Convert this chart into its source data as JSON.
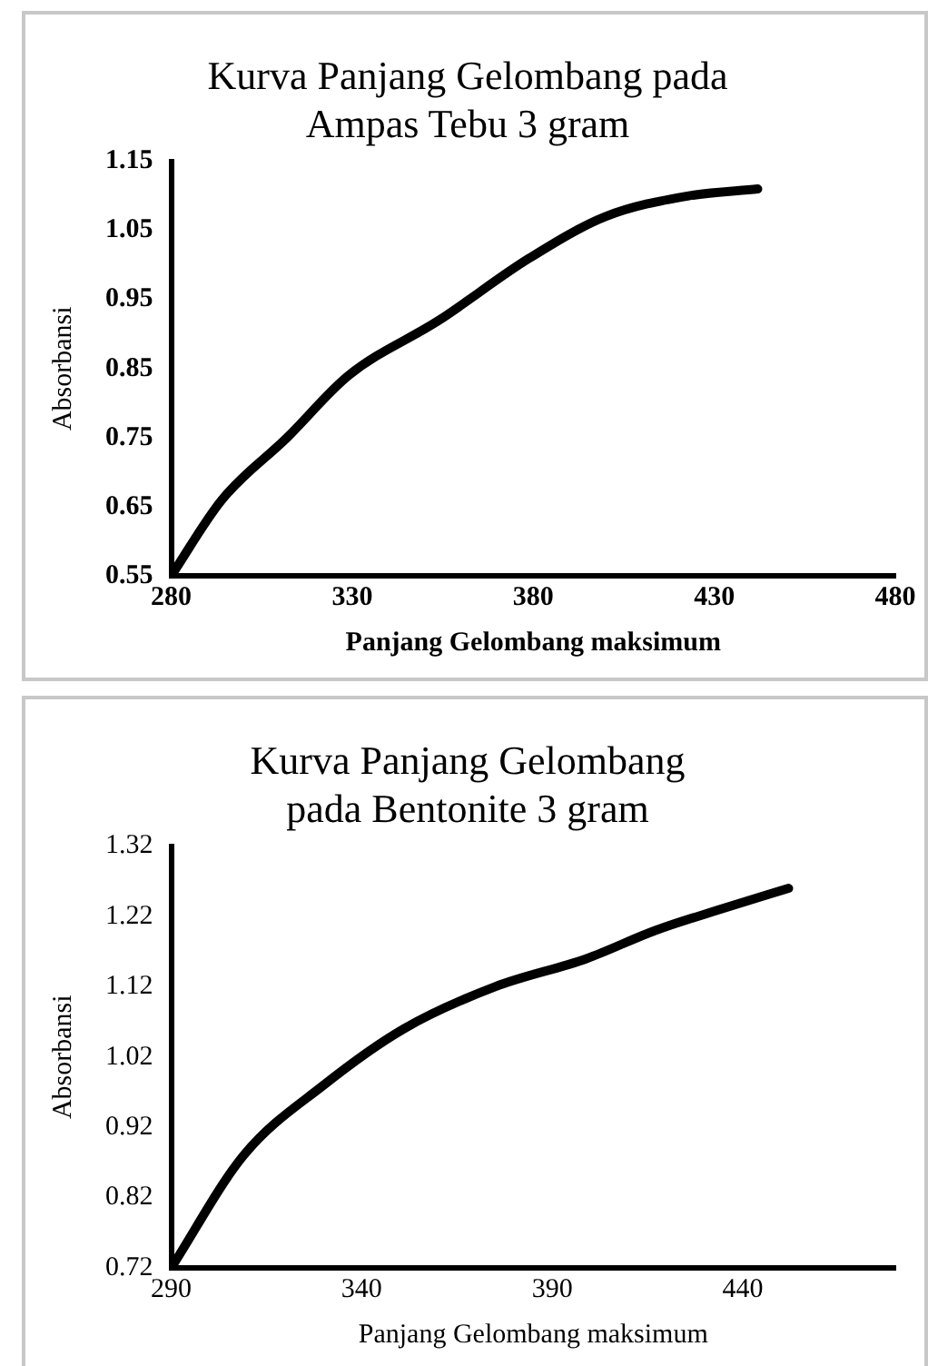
{
  "chart_data": [
    {
      "type": "line",
      "title": [
        "Kurva Panjang Gelombang pada",
        "Ampas Tebu 3 gram"
      ],
      "xlabel": "Panjang Gelombang maksimum",
      "ylabel": "Absorbansi",
      "x": [
        280,
        294,
        312,
        329,
        354,
        379,
        400,
        423,
        442
      ],
      "values": [
        0.55,
        0.66,
        0.75,
        0.84,
        0.92,
        1.01,
        1.07,
        1.1,
        1.11
      ],
      "color": "#000000",
      "xlim": [
        280,
        480
      ],
      "xticks": [
        280,
        330,
        380,
        430,
        480
      ],
      "ylim": [
        0.55,
        1.15
      ],
      "yticks": [
        0.55,
        0.65,
        0.75,
        0.85,
        0.95,
        1.05,
        1.15
      ],
      "grid": false,
      "legend": false,
      "marker": "none",
      "line_style": "solid"
    },
    {
      "type": "line",
      "title": [
        "Kurva Panjang Gelombang",
        "pada Bentonite 3 gram"
      ],
      "xlabel": "Panjang Gelombang maksimum",
      "ylabel": "Absorbansi",
      "x": [
        290,
        309,
        330,
        351,
        375,
        399,
        417,
        434,
        452
      ],
      "values": [
        0.72,
        0.88,
        0.98,
        1.06,
        1.12,
        1.16,
        1.2,
        1.23,
        1.26
      ],
      "color": "#000000",
      "xlim": [
        290,
        480
      ],
      "xticks": [
        290,
        340,
        390,
        440
      ],
      "ylim": [
        0.72,
        1.32
      ],
      "yticks": [
        0.72,
        0.82,
        0.92,
        1.02,
        1.12,
        1.22,
        1.32
      ],
      "grid": false,
      "legend": false,
      "marker": "none",
      "line_style": "solid"
    }
  ]
}
